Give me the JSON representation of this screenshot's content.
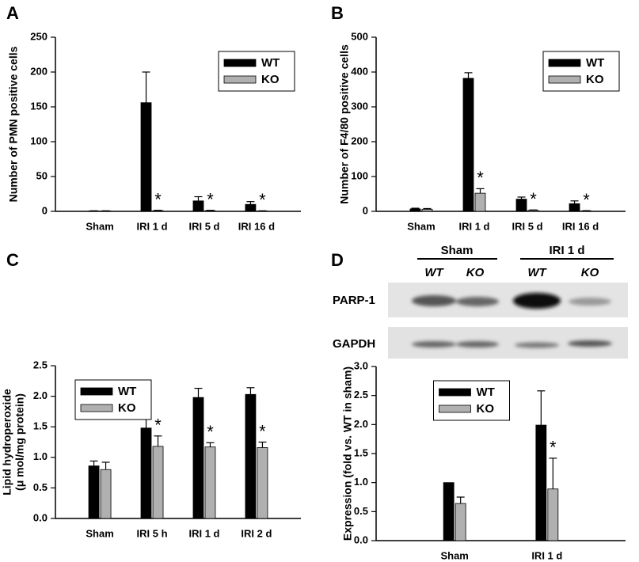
{
  "chart_data": [
    {
      "type": "bar",
      "panel": "A",
      "ylabel": [
        "Number of PMN positive cells"
      ],
      "categories": [
        "Sham",
        "IRI 1 d",
        "IRI 5 d",
        "IRI 16 d"
      ],
      "series": [
        {
          "name": "WT",
          "color": "#000000",
          "values": [
            0.5,
            156,
            15,
            10
          ],
          "errors": [
            0.3,
            44,
            6,
            4
          ],
          "markers": [
            null,
            null,
            null,
            null
          ]
        },
        {
          "name": "KO",
          "color": "#b0b0b0",
          "values": [
            0.5,
            1,
            1,
            0.5
          ],
          "errors": [
            0.3,
            0.5,
            0.5,
            0.3
          ],
          "markers": [
            null,
            "*",
            "*",
            "*"
          ]
        }
      ],
      "ylim": [
        0,
        250
      ],
      "yticks": [
        0,
        50,
        100,
        150,
        200,
        250
      ],
      "legend": "upper right"
    },
    {
      "type": "bar",
      "panel": "B",
      "ylabel": [
        "Number of F4/80 positive cells"
      ],
      "categories": [
        "Sham",
        "IRI 1 d",
        "IRI 5 d",
        "IRI 16 d"
      ],
      "series": [
        {
          "name": "WT",
          "color": "#000000",
          "values": [
            7,
            382,
            35,
            22
          ],
          "errors": [
            2,
            16,
            6,
            8
          ],
          "markers": [
            null,
            null,
            null,
            null
          ]
        },
        {
          "name": "KO",
          "color": "#b0b0b0",
          "values": [
            6,
            52,
            3,
            1
          ],
          "errors": [
            2,
            13,
            1,
            1
          ],
          "markers": [
            null,
            "*",
            "*",
            "*"
          ]
        }
      ],
      "ylim": [
        0,
        500
      ],
      "yticks": [
        0,
        100,
        200,
        300,
        400,
        500
      ],
      "legend": "upper right"
    },
    {
      "type": "bar",
      "panel": "C",
      "ylabel": [
        "Lipid hydroperoxide",
        "(μ mol/mg protein)"
      ],
      "categories": [
        "Sham",
        "IRI 5 h",
        "IRI 1 d",
        "IRI 2 d"
      ],
      "series": [
        {
          "name": "WT",
          "color": "#000000",
          "values": [
            0.86,
            1.48,
            1.98,
            2.03
          ],
          "errors": [
            0.08,
            0.18,
            0.15,
            0.11
          ],
          "markers": [
            null,
            null,
            null,
            null
          ]
        },
        {
          "name": "KO",
          "color": "#b0b0b0",
          "values": [
            0.8,
            1.18,
            1.17,
            1.16
          ],
          "errors": [
            0.12,
            0.17,
            0.07,
            0.09
          ],
          "markers": [
            null,
            "*",
            "*",
            "*"
          ]
        }
      ],
      "ylim": [
        0,
        2.5
      ],
      "yticks": [
        {
          "value": 0,
          "label": "0.0"
        },
        0.5,
        {
          "value": 1,
          "label": "1.0"
        },
        1.5,
        {
          "value": 2,
          "label": "2.0"
        },
        2.5
      ],
      "legend": "upper left"
    },
    {
      "type": "bar",
      "panel": "D",
      "ylabel": [
        "Expression (fold vs. WT in sham)"
      ],
      "categories": [
        "Sham",
        "IRI 1 d"
      ],
      "series": [
        {
          "name": "WT",
          "color": "#000000",
          "values": [
            1.0,
            1.99
          ],
          "errors": [
            null,
            0.59
          ],
          "markers": [
            null,
            null
          ]
        },
        {
          "name": "KO",
          "color": "#b0b0b0",
          "values": [
            0.64,
            0.89
          ],
          "errors": [
            0.11,
            0.53
          ],
          "markers": [
            null,
            "*"
          ]
        }
      ],
      "ylim": [
        0,
        3
      ],
      "yticks": [
        {
          "value": 0,
          "label": "0.0"
        },
        0.5,
        {
          "value": 1,
          "label": "1.0"
        },
        1.5,
        {
          "value": 2,
          "label": "2.0"
        },
        2.5,
        {
          "value": 3,
          "label": "3.0"
        }
      ],
      "legend": "upper center"
    }
  ],
  "blot": {
    "groups": [
      "Sham",
      "IRI 1 d"
    ],
    "lanes": [
      "WT",
      "KO",
      "WT",
      "KO"
    ],
    "rows": [
      "PARP-1",
      "GAPDH"
    ]
  }
}
